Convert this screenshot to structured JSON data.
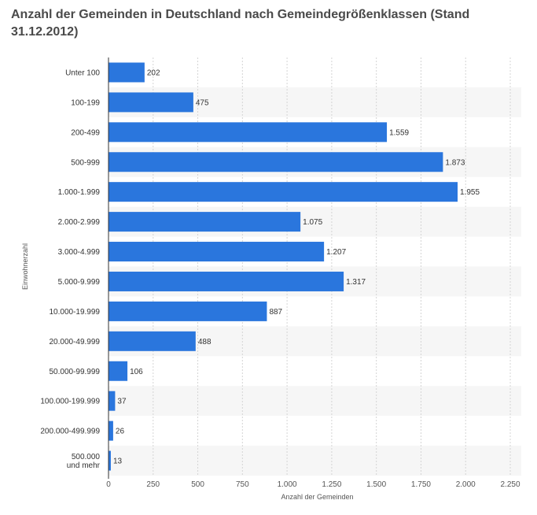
{
  "chart_data": {
    "type": "bar",
    "orientation": "horizontal",
    "title": "Anzahl der Gemeinden in Deutschland nach Gemeindegrößenklassen (Stand 31.12.2012)",
    "xlabel": "Anzahl der Gemeinden",
    "ylabel": "Einwohnerzahl",
    "xlim": [
      0,
      2250
    ],
    "xticks": [
      0,
      250,
      500,
      750,
      1000,
      1250,
      1500,
      1750,
      2000,
      2250
    ],
    "xtick_labels": [
      "0",
      "250",
      "500",
      "750",
      "1.000",
      "1.250",
      "1.500",
      "1.750",
      "2.000",
      "2.250"
    ],
    "categories": [
      [
        "Unter 100"
      ],
      [
        "100-199"
      ],
      [
        "200-499"
      ],
      [
        "500-999"
      ],
      [
        "1.000-1.999"
      ],
      [
        "2.000-2.999"
      ],
      [
        "3.000-4.999"
      ],
      [
        "5.000-9.999"
      ],
      [
        "10.000-19.999"
      ],
      [
        "20.000-49.999"
      ],
      [
        "50.000-99.999"
      ],
      [
        "100.000-199.999"
      ],
      [
        "200.000-499.999"
      ],
      [
        "500.000",
        "und mehr"
      ]
    ],
    "values": [
      202,
      475,
      1559,
      1873,
      1955,
      1075,
      1207,
      1317,
      887,
      488,
      106,
      37,
      26,
      13
    ],
    "value_labels": [
      "202",
      "475",
      "1.559",
      "1.873",
      "1.955",
      "1.075",
      "1.207",
      "1.317",
      "887",
      "488",
      "106",
      "37",
      "26",
      "13"
    ],
    "grid": true,
    "legend": "none",
    "colors": {
      "bar": "#2a76dd",
      "band": "#f6f6f6",
      "grid": "#d4d4d4",
      "axis": "#333333"
    }
  }
}
